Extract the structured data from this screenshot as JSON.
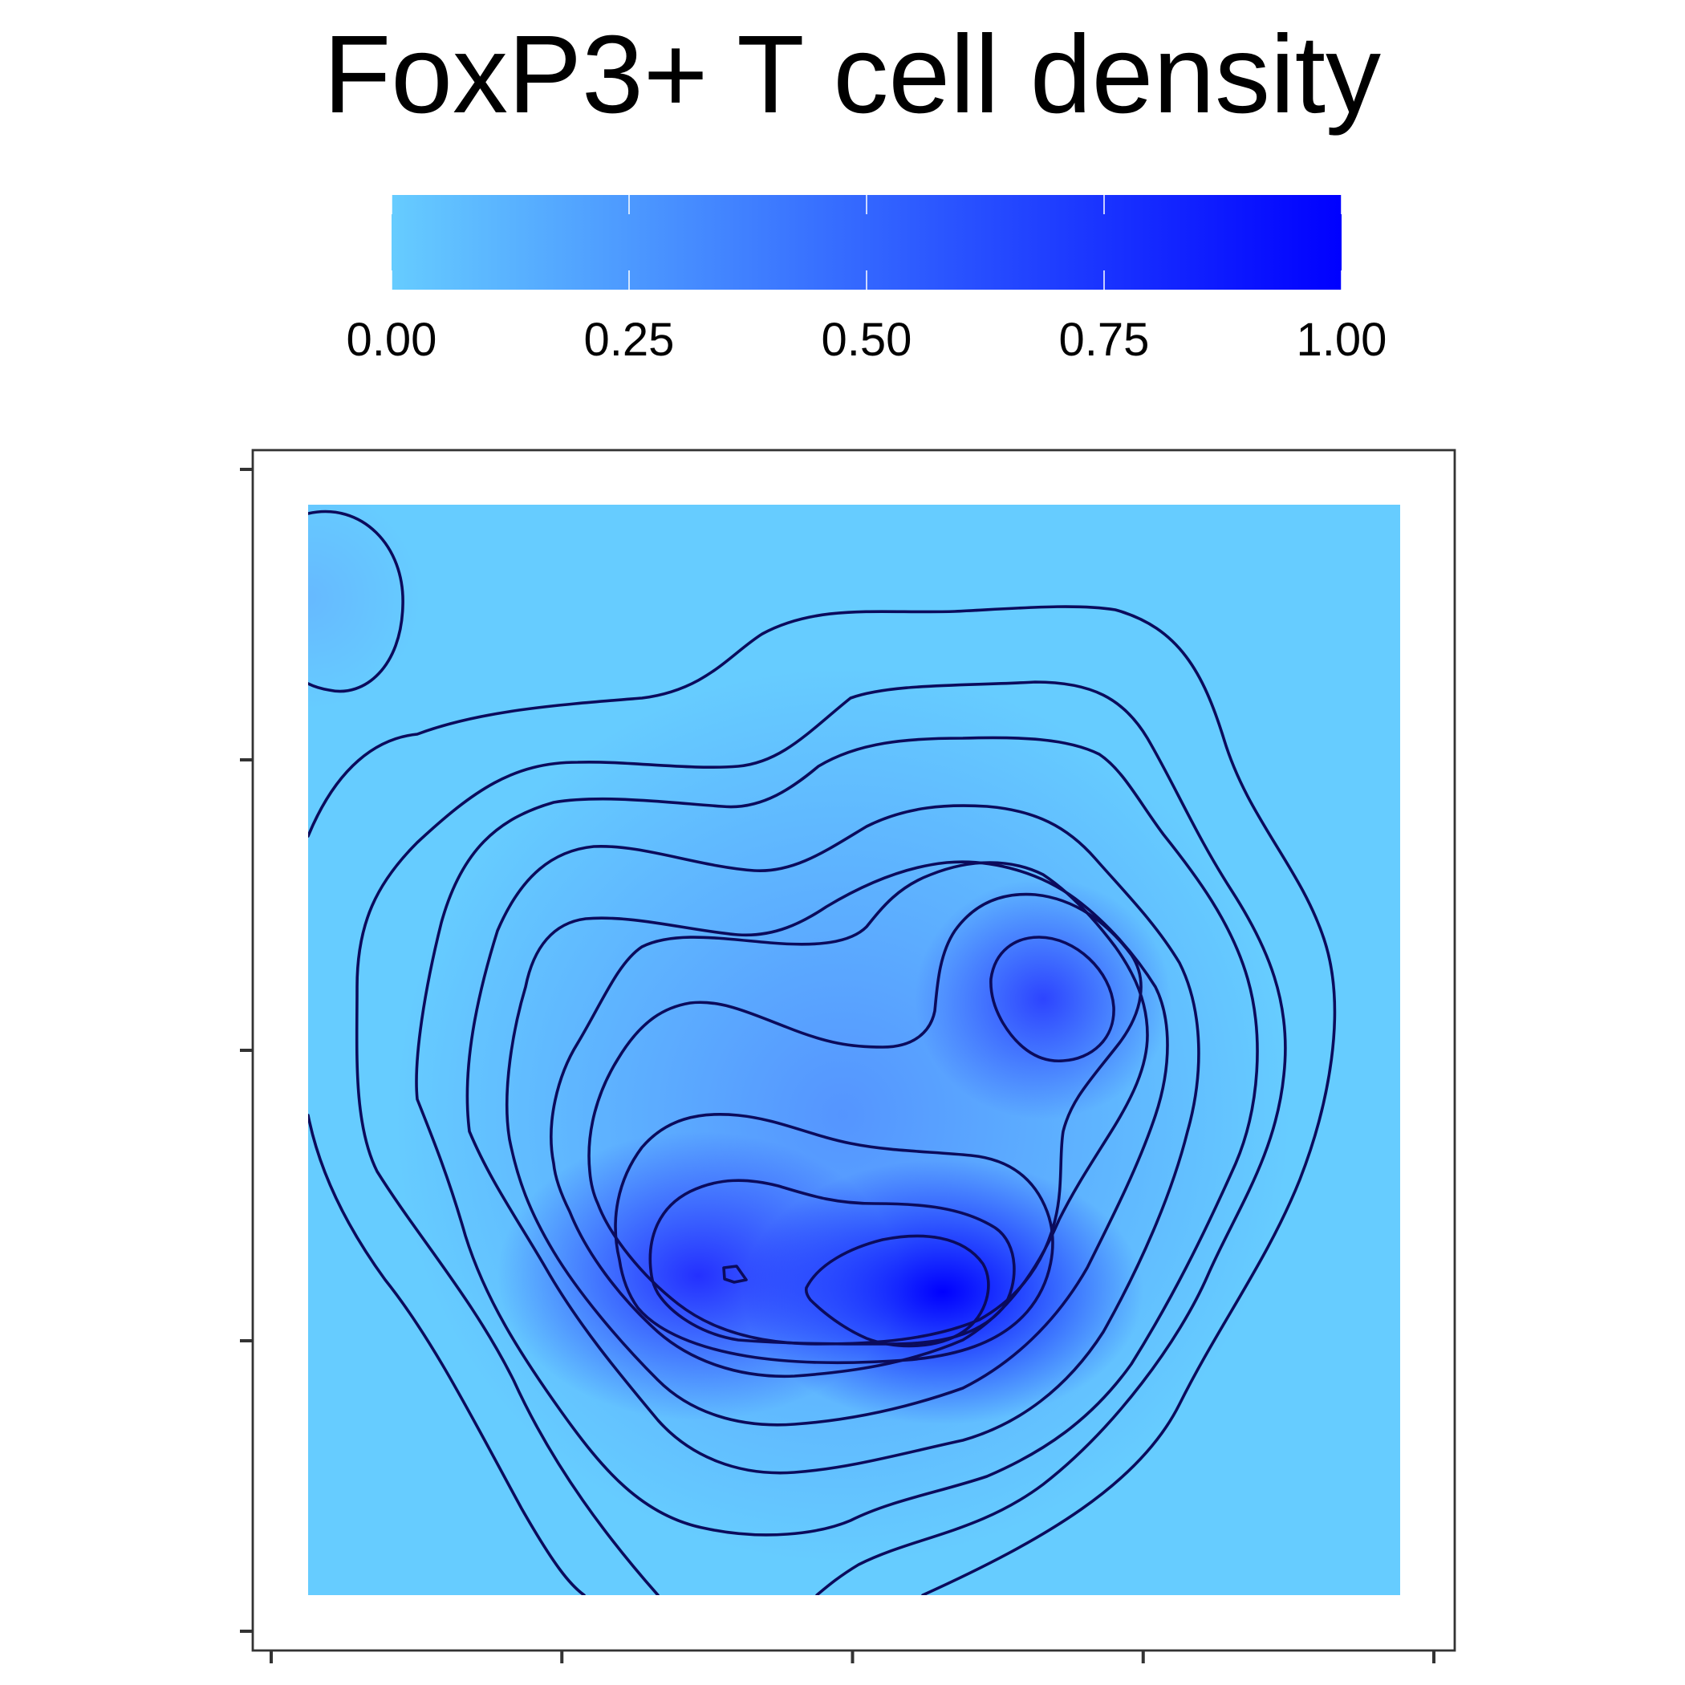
{
  "chart_data": {
    "type": "density2d",
    "title": "FoxP3+ T cell density",
    "xlabel": "",
    "ylabel": "",
    "legend": {
      "position": "top",
      "type": "colorbar",
      "ticks": [
        0,
        0.25,
        0.5,
        0.75,
        1
      ],
      "tick_labels": [
        "0.00",
        "0.25",
        "0.50",
        "0.75",
        "1.00"
      ],
      "low_color": "#66ccff",
      "high_color": "#0000ff",
      "range": [
        0,
        1
      ]
    },
    "x_axis": {
      "ticks": 5,
      "tick_labels_visible": false
    },
    "y_axis": {
      "ticks": 5,
      "tick_labels_visible": false
    },
    "peaks": [
      {
        "x": 0.58,
        "y": 0.28,
        "density": 1.0
      },
      {
        "x": 0.37,
        "y": 0.29,
        "density": 0.8
      },
      {
        "x": 0.68,
        "y": 0.55,
        "density": 0.7
      }
    ],
    "contour_color": "#0b0b5c",
    "grid": false
  }
}
